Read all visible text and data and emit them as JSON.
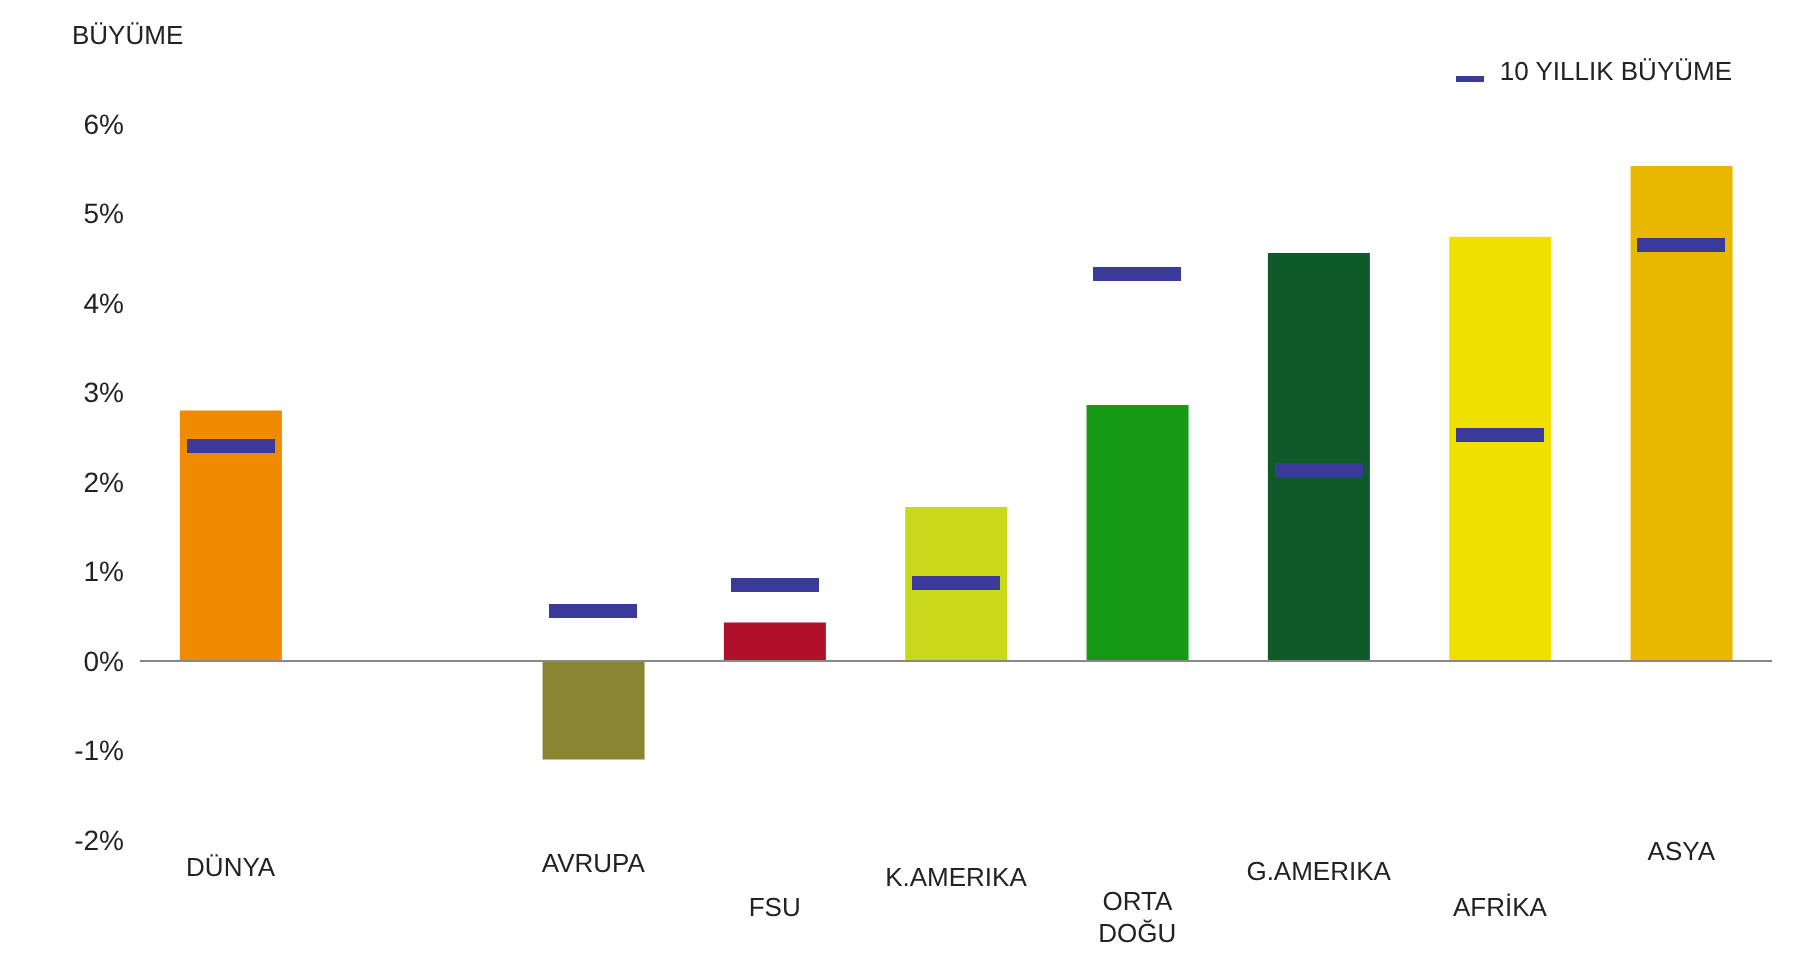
{
  "chart_data": {
    "type": "bar",
    "ylabel": "BÜYÜME",
    "categories": [
      "DÜNYA",
      null,
      "AVRUPA",
      "FSU",
      "K.AMERIKA",
      "ORTA DOĞU",
      "G.AMERIKA",
      "AFRİKA",
      "ASYA"
    ],
    "series": [
      {
        "type": "bar",
        "colors": [
          "#f08a00",
          null,
          "#8a8530",
          "#b0102a",
          "#c8d81a",
          "#169a16",
          "#0e5a28",
          "#f0e000",
          "#e8b800"
        ],
        "values": [
          2.8,
          null,
          -1.1,
          0.43,
          1.72,
          2.86,
          4.56,
          4.74,
          5.53
        ]
      },
      {
        "type": "scatter",
        "name": "10 YILLIK BÜYÜME",
        "color": "#3a3a9a",
        "values": [
          2.4,
          null,
          0.56,
          0.85,
          0.87,
          4.32,
          2.13,
          2.53,
          4.65
        ]
      }
    ],
    "ylim": [
      -2,
      6
    ],
    "yticks": [
      {
        "value": -2,
        "label": "-2%"
      },
      {
        "value": -1,
        "label": "-1%"
      },
      {
        "value": 0,
        "label": "0%"
      },
      {
        "value": 1,
        "label": "1%"
      },
      {
        "value": 2,
        "label": "2%"
      },
      {
        "value": 3,
        "label": "3%"
      },
      {
        "value": 4,
        "label": "4%"
      },
      {
        "value": 5,
        "label": "5%"
      },
      {
        "value": 6,
        "label": "6%"
      }
    ],
    "ref_lines": [
      {
        "axis": "y",
        "value": 0,
        "color": "#888888"
      }
    ],
    "legend": "top right"
  }
}
